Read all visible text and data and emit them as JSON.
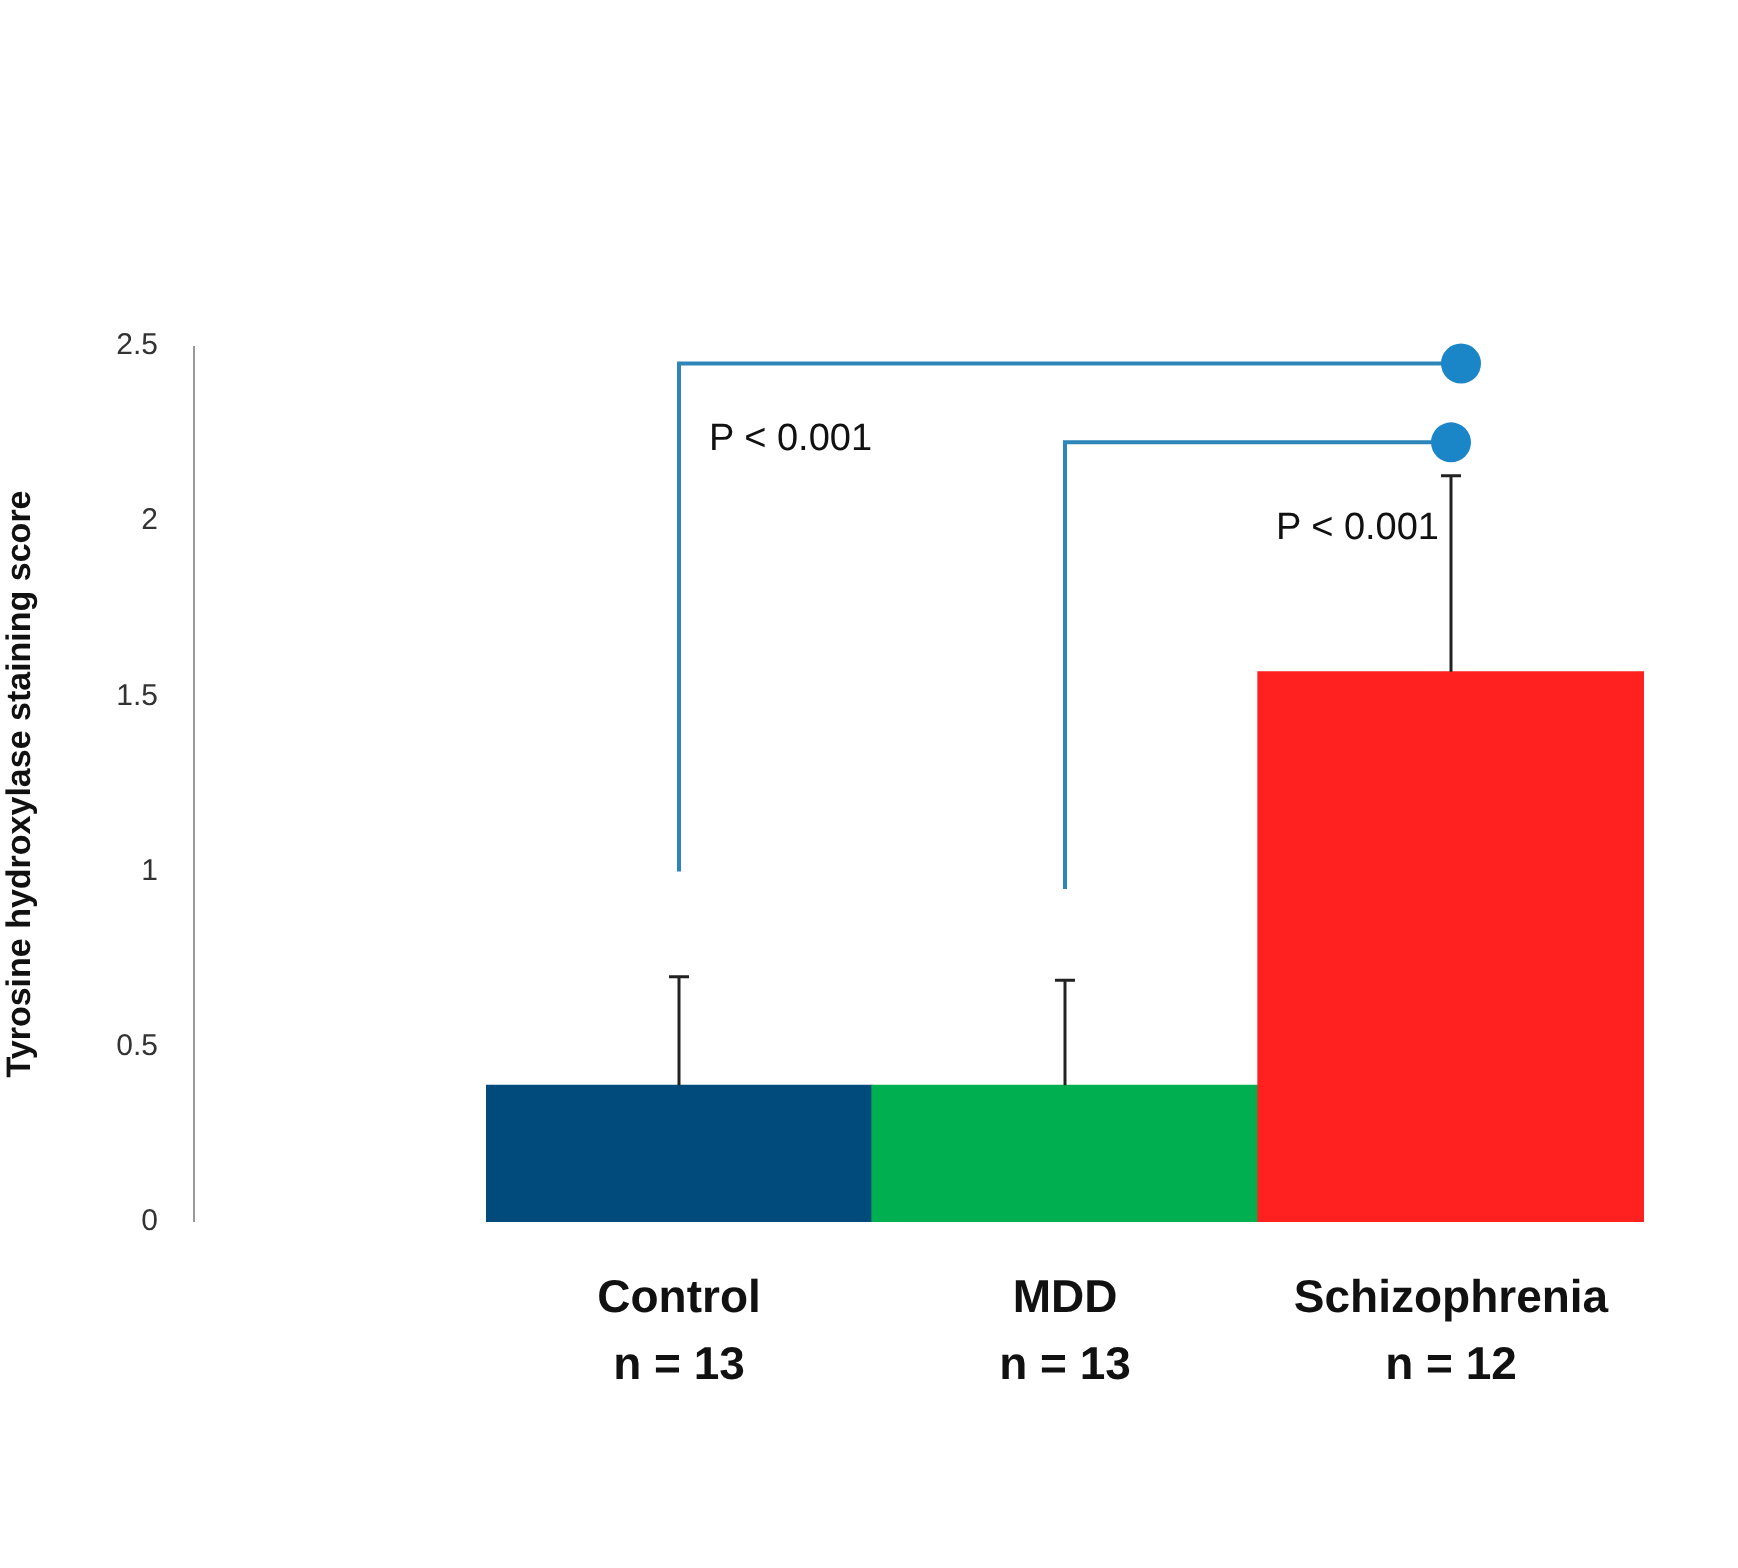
{
  "chart_data": {
    "type": "bar",
    "ylabel": "Tyrosine hydroxylase staining score",
    "categories": [
      "Control\nn = 13",
      "MDD\nn = 13",
      "Schizophrenia\nn = 12"
    ],
    "values": [
      0.39,
      0.39,
      1.57
    ],
    "colors": [
      "#004a7c",
      "#00b050",
      "#ff2020"
    ],
    "errors": [
      [
        0.39,
        0.7
      ],
      [
        0.39,
        0.69
      ],
      [
        1.57,
        2.13
      ]
    ],
    "ylim": [
      0,
      2.5
    ],
    "yticks": [
      0,
      0.5,
      1,
      1.5,
      2,
      2.5
    ],
    "annotations": [
      "P < 0.001",
      "P < 0.001"
    ],
    "grid": false,
    "legend": false
  }
}
